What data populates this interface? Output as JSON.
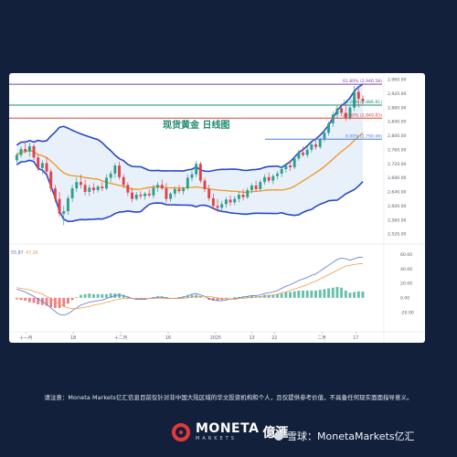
{
  "chart_data": {
    "type": "candlestick",
    "title": "现货黄金 日线图",
    "xlabel": "",
    "ylabel": "",
    "ylim": [
      2515,
      2965
    ],
    "y_ticks": [
      "2,960.00",
      "2,920.00",
      "2,880.00",
      "2,840.00",
      "2,800.00",
      "2,760.00",
      "2,720.00",
      "2,680.00",
      "2,640.00",
      "2,600.00",
      "2,560.00",
      "2,520.00"
    ],
    "y_tick_values": [
      2960,
      2920,
      2880,
      2840,
      2800,
      2760,
      2720,
      2680,
      2640,
      2600,
      2560,
      2520
    ],
    "x_ticks": [
      "十一月",
      "18",
      "十二月",
      "16",
      "2025",
      "13",
      "22",
      "二月",
      "17"
    ],
    "x_tick_index": [
      4,
      25,
      46,
      67,
      88,
      104,
      114,
      135,
      150
    ],
    "fib_levels": [
      {
        "label": "61.80% (2,946.58)",
        "value": 2946.58,
        "color": "#7b3fb4"
      },
      {
        "label": "38.20% (2,886.81)",
        "value": 2886.81,
        "color": "#1f8a70"
      },
      {
        "label": "23.60% (2,849.83)",
        "value": 2849.83,
        "color": "#d8453f"
      },
      {
        "label": "0.00% (2,790.06)",
        "value": 2790.06,
        "color": "#4a7bd0"
      }
    ],
    "candles": [
      {
        "o": 2730,
        "h": 2752,
        "l": 2722,
        "c": 2745
      },
      {
        "o": 2745,
        "h": 2770,
        "l": 2738,
        "c": 2762
      },
      {
        "o": 2762,
        "h": 2785,
        "l": 2750,
        "c": 2755
      },
      {
        "o": 2755,
        "h": 2780,
        "l": 2740,
        "c": 2770
      },
      {
        "o": 2770,
        "h": 2776,
        "l": 2730,
        "c": 2738
      },
      {
        "o": 2738,
        "h": 2748,
        "l": 2700,
        "c": 2708
      },
      {
        "o": 2708,
        "h": 2730,
        "l": 2690,
        "c": 2722
      },
      {
        "o": 2722,
        "h": 2740,
        "l": 2690,
        "c": 2698
      },
      {
        "o": 2698,
        "h": 2705,
        "l": 2640,
        "c": 2650
      },
      {
        "o": 2650,
        "h": 2660,
        "l": 2610,
        "c": 2620
      },
      {
        "o": 2620,
        "h": 2640,
        "l": 2570,
        "c": 2578
      },
      {
        "o": 2578,
        "h": 2600,
        "l": 2545,
        "c": 2585
      },
      {
        "o": 2585,
        "h": 2630,
        "l": 2575,
        "c": 2622
      },
      {
        "o": 2622,
        "h": 2660,
        "l": 2612,
        "c": 2650
      },
      {
        "o": 2650,
        "h": 2680,
        "l": 2640,
        "c": 2668
      },
      {
        "o": 2668,
        "h": 2690,
        "l": 2650,
        "c": 2660
      },
      {
        "o": 2660,
        "h": 2675,
        "l": 2630,
        "c": 2640
      },
      {
        "o": 2640,
        "h": 2660,
        "l": 2628,
        "c": 2652
      },
      {
        "o": 2652,
        "h": 2665,
        "l": 2635,
        "c": 2645
      },
      {
        "o": 2645,
        "h": 2660,
        "l": 2638,
        "c": 2655
      },
      {
        "o": 2655,
        "h": 2668,
        "l": 2642,
        "c": 2650
      },
      {
        "o": 2650,
        "h": 2690,
        "l": 2645,
        "c": 2680
      },
      {
        "o": 2680,
        "h": 2700,
        "l": 2668,
        "c": 2692
      },
      {
        "o": 2692,
        "h": 2722,
        "l": 2680,
        "c": 2715
      },
      {
        "o": 2715,
        "h": 2726,
        "l": 2675,
        "c": 2682
      },
      {
        "o": 2682,
        "h": 2690,
        "l": 2650,
        "c": 2660
      },
      {
        "o": 2660,
        "h": 2668,
        "l": 2628,
        "c": 2638
      },
      {
        "o": 2638,
        "h": 2652,
        "l": 2610,
        "c": 2620
      },
      {
        "o": 2620,
        "h": 2640,
        "l": 2615,
        "c": 2632
      },
      {
        "o": 2632,
        "h": 2642,
        "l": 2620,
        "c": 2628
      },
      {
        "o": 2628,
        "h": 2640,
        "l": 2618,
        "c": 2635
      },
      {
        "o": 2635,
        "h": 2648,
        "l": 2625,
        "c": 2630
      },
      {
        "o": 2630,
        "h": 2660,
        "l": 2622,
        "c": 2652
      },
      {
        "o": 2652,
        "h": 2668,
        "l": 2640,
        "c": 2660
      },
      {
        "o": 2660,
        "h": 2675,
        "l": 2645,
        "c": 2650
      },
      {
        "o": 2650,
        "h": 2665,
        "l": 2610,
        "c": 2620
      },
      {
        "o": 2620,
        "h": 2640,
        "l": 2612,
        "c": 2635
      },
      {
        "o": 2635,
        "h": 2655,
        "l": 2625,
        "c": 2648
      },
      {
        "o": 2648,
        "h": 2660,
        "l": 2635,
        "c": 2642
      },
      {
        "o": 2642,
        "h": 2655,
        "l": 2632,
        "c": 2650
      },
      {
        "o": 2650,
        "h": 2690,
        "l": 2645,
        "c": 2680
      },
      {
        "o": 2680,
        "h": 2700,
        "l": 2670,
        "c": 2690
      },
      {
        "o": 2690,
        "h": 2728,
        "l": 2682,
        "c": 2720
      },
      {
        "o": 2720,
        "h": 2726,
        "l": 2665,
        "c": 2672
      },
      {
        "o": 2672,
        "h": 2680,
        "l": 2640,
        "c": 2648
      },
      {
        "o": 2648,
        "h": 2660,
        "l": 2615,
        "c": 2622
      },
      {
        "o": 2622,
        "h": 2635,
        "l": 2590,
        "c": 2600
      },
      {
        "o": 2600,
        "h": 2620,
        "l": 2582,
        "c": 2595
      },
      {
        "o": 2595,
        "h": 2615,
        "l": 2585,
        "c": 2605
      },
      {
        "o": 2605,
        "h": 2625,
        "l": 2595,
        "c": 2618
      },
      {
        "o": 2618,
        "h": 2630,
        "l": 2600,
        "c": 2610
      },
      {
        "o": 2610,
        "h": 2628,
        "l": 2602,
        "c": 2620
      },
      {
        "o": 2620,
        "h": 2640,
        "l": 2610,
        "c": 2632
      },
      {
        "o": 2632,
        "h": 2648,
        "l": 2615,
        "c": 2625
      },
      {
        "o": 2625,
        "h": 2652,
        "l": 2620,
        "c": 2645
      },
      {
        "o": 2645,
        "h": 2665,
        "l": 2636,
        "c": 2658
      },
      {
        "o": 2658,
        "h": 2672,
        "l": 2640,
        "c": 2648
      },
      {
        "o": 2648,
        "h": 2675,
        "l": 2642,
        "c": 2668
      },
      {
        "o": 2668,
        "h": 2690,
        "l": 2660,
        "c": 2682
      },
      {
        "o": 2682,
        "h": 2695,
        "l": 2665,
        "c": 2672
      },
      {
        "o": 2672,
        "h": 2690,
        "l": 2662,
        "c": 2685
      },
      {
        "o": 2685,
        "h": 2700,
        "l": 2675,
        "c": 2692
      },
      {
        "o": 2692,
        "h": 2712,
        "l": 2682,
        "c": 2705
      },
      {
        "o": 2705,
        "h": 2722,
        "l": 2695,
        "c": 2715
      },
      {
        "o": 2715,
        "h": 2730,
        "l": 2700,
        "c": 2710
      },
      {
        "o": 2710,
        "h": 2740,
        "l": 2705,
        "c": 2735
      },
      {
        "o": 2735,
        "h": 2760,
        "l": 2728,
        "c": 2752
      },
      {
        "o": 2752,
        "h": 2770,
        "l": 2740,
        "c": 2745
      },
      {
        "o": 2745,
        "h": 2768,
        "l": 2738,
        "c": 2760
      },
      {
        "o": 2760,
        "h": 2782,
        "l": 2752,
        "c": 2775
      },
      {
        "o": 2775,
        "h": 2790,
        "l": 2760,
        "c": 2768
      },
      {
        "o": 2768,
        "h": 2795,
        "l": 2762,
        "c": 2790
      },
      {
        "o": 2790,
        "h": 2815,
        "l": 2782,
        "c": 2808
      },
      {
        "o": 2808,
        "h": 2840,
        "l": 2800,
        "c": 2835
      },
      {
        "o": 2835,
        "h": 2870,
        "l": 2825,
        "c": 2860
      },
      {
        "o": 2860,
        "h": 2885,
        "l": 2850,
        "c": 2878
      },
      {
        "o": 2878,
        "h": 2892,
        "l": 2855,
        "c": 2865
      },
      {
        "o": 2865,
        "h": 2890,
        "l": 2842,
        "c": 2850
      },
      {
        "o": 2850,
        "h": 2885,
        "l": 2845,
        "c": 2880
      },
      {
        "o": 2880,
        "h": 2942,
        "l": 2870,
        "c": 2925
      },
      {
        "o": 2925,
        "h": 2935,
        "l": 2880,
        "c": 2905
      },
      {
        "o": 2905,
        "h": 2915,
        "l": 2890,
        "c": 2898
      }
    ],
    "indicator": {
      "name": "MACD",
      "ylim": [
        -28,
        68
      ],
      "y_ticks": [
        "60.00",
        "40.00",
        "20.00",
        "0.00",
        "-20.00"
      ],
      "y_tick_values": [
        60,
        40,
        20,
        0,
        -20
      ],
      "values_shown": [
        "55.87",
        "47.26"
      ],
      "macd": [
        12,
        10,
        8,
        5,
        2,
        -2,
        -5,
        -9,
        -14,
        -19,
        -23,
        -24,
        -22,
        -18,
        -14,
        -10,
        -8,
        -6,
        -5,
        -4,
        -3,
        -1,
        1,
        3,
        4,
        3,
        1,
        -1,
        -2,
        -2,
        -2,
        -1,
        0,
        1,
        1,
        0,
        -1,
        -1,
        0,
        1,
        3,
        5,
        6,
        4,
        2,
        -1,
        -3,
        -4,
        -4,
        -3,
        -2,
        -1,
        0,
        1,
        2,
        3,
        3,
        4,
        6,
        7,
        8,
        10,
        13,
        16,
        18,
        21,
        24,
        26,
        28,
        31,
        33,
        37,
        41,
        45,
        49,
        53,
        55,
        54,
        52,
        54,
        56,
        55.87
      ],
      "signal": [
        14,
        13,
        12,
        11,
        9,
        7,
        5,
        2,
        -1,
        -5,
        -9,
        -12,
        -14,
        -15,
        -15,
        -14,
        -13,
        -12,
        -10,
        -9,
        -8,
        -6,
        -5,
        -3,
        -2,
        -1,
        -1,
        -1,
        -1,
        -1,
        -1,
        -1,
        -1,
        -1,
        -1,
        -1,
        -1,
        -1,
        -1,
        -1,
        0,
        1,
        2,
        2,
        2,
        2,
        1,
        0,
        -1,
        -1,
        -2,
        -2,
        -1,
        -1,
        0,
        0,
        1,
        2,
        2,
        3,
        4,
        5,
        7,
        8,
        10,
        12,
        14,
        16,
        18,
        21,
        23,
        26,
        29,
        32,
        35,
        38,
        41,
        44,
        45,
        46,
        47,
        47.26
      ]
    }
  },
  "disclaimer": "请注意：Moneta Markets亿汇信息目前仅针对非中国大陆区域的华文投资机构和个人，且仅提供参考价值，不具备任何现实面面指导意义。",
  "brand": {
    "name": "MONETA",
    "cn": "億滙",
    "sub": "MARKETS",
    "watermark": "雪球：MonetaMarkets亿汇"
  },
  "colors": {
    "up": "#2e9e8a",
    "down": "#e0424a",
    "band": "#2948c8",
    "band_fill": "#e8f0fa",
    "ma": "#f0961e",
    "macd_line": "#5a75d8",
    "signal_line": "#f29a4a",
    "hist_up": "#4fb39c",
    "hist_down": "#e86a6f"
  }
}
